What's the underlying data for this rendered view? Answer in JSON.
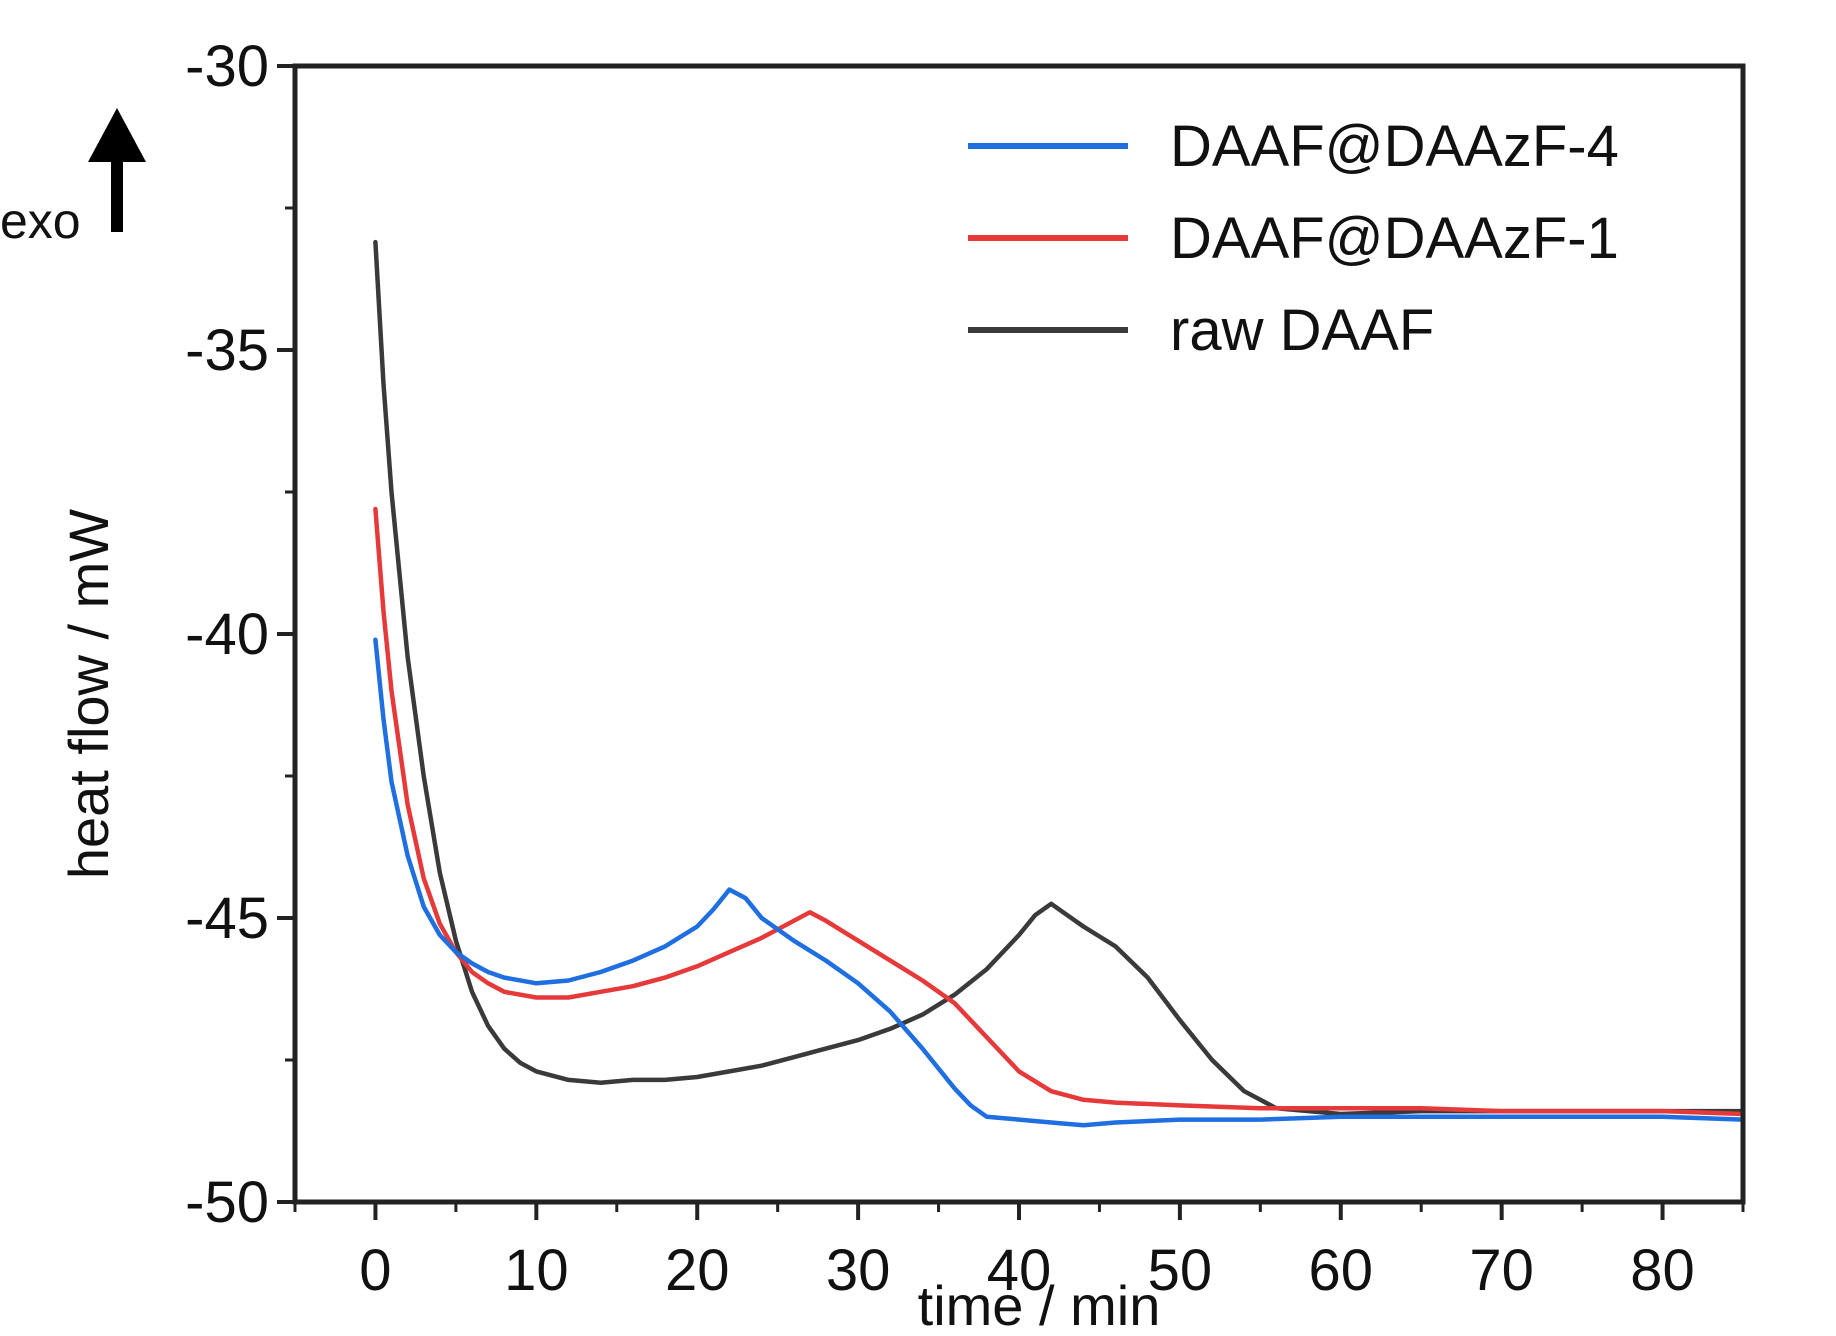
{
  "annotation": {
    "exo_label": "exo"
  },
  "chart_data": {
    "type": "line",
    "xlabel": "time / min",
    "ylabel": "heat flow / mW",
    "xlim": [
      -5,
      85
    ],
    "ylim": [
      -50,
      -30
    ],
    "xticks": [
      0,
      10,
      20,
      30,
      40,
      50,
      60,
      70,
      80
    ],
    "yticks": [
      -30,
      -35,
      -40,
      -45,
      -50
    ],
    "grid": false,
    "legend_position": "top-right",
    "series": [
      {
        "name": "DAAF@DAAzF-4",
        "color": "#1f6fe0",
        "x": [
          0,
          0.5,
          1,
          2,
          3,
          4,
          5,
          6,
          7,
          8,
          10,
          12,
          14,
          16,
          18,
          20,
          21,
          22,
          23,
          24,
          26,
          28,
          30,
          32,
          34,
          36,
          37,
          38,
          40,
          42,
          44,
          46,
          50,
          55,
          60,
          65,
          70,
          75,
          80,
          85
        ],
        "y": [
          -40.1,
          -41.5,
          -42.6,
          -43.9,
          -44.8,
          -45.3,
          -45.6,
          -45.8,
          -45.95,
          -46.05,
          -46.15,
          -46.1,
          -45.95,
          -45.75,
          -45.5,
          -45.15,
          -44.85,
          -44.5,
          -44.65,
          -45.0,
          -45.4,
          -45.75,
          -46.15,
          -46.65,
          -47.3,
          -48.0,
          -48.3,
          -48.5,
          -48.55,
          -48.6,
          -48.65,
          -48.6,
          -48.55,
          -48.55,
          -48.5,
          -48.5,
          -48.5,
          -48.5,
          -48.5,
          -48.55
        ]
      },
      {
        "name": "DAAF@DAAzF-1",
        "color": "#e63a3a",
        "x": [
          0,
          0.5,
          1,
          2,
          3,
          4,
          5,
          6,
          7,
          8,
          10,
          12,
          14,
          16,
          18,
          20,
          22,
          24,
          26,
          27,
          28,
          30,
          32,
          34,
          36,
          38,
          40,
          42,
          44,
          46,
          50,
          55,
          60,
          65,
          70,
          75,
          80,
          85
        ],
        "y": [
          -37.8,
          -39.6,
          -41.0,
          -43.0,
          -44.3,
          -45.1,
          -45.6,
          -45.95,
          -46.15,
          -46.3,
          -46.4,
          -46.4,
          -46.3,
          -46.2,
          -46.05,
          -45.85,
          -45.6,
          -45.35,
          -45.05,
          -44.9,
          -45.05,
          -45.4,
          -45.75,
          -46.1,
          -46.5,
          -47.1,
          -47.7,
          -48.05,
          -48.2,
          -48.25,
          -48.3,
          -48.35,
          -48.35,
          -48.35,
          -48.4,
          -48.4,
          -48.4,
          -48.45
        ]
      },
      {
        "name": "raw DAAF",
        "color": "#3a3a3a",
        "x": [
          0,
          0.5,
          1,
          2,
          3,
          4,
          5,
          6,
          7,
          8,
          9,
          10,
          12,
          14,
          16,
          18,
          20,
          22,
          24,
          26,
          28,
          30,
          32,
          34,
          36,
          38,
          40,
          41,
          42,
          43,
          44,
          46,
          48,
          50,
          52,
          54,
          56,
          60,
          65,
          70,
          75,
          80,
          85
        ],
        "y": [
          -33.1,
          -35.6,
          -37.5,
          -40.4,
          -42.5,
          -44.2,
          -45.4,
          -46.3,
          -46.9,
          -47.3,
          -47.55,
          -47.7,
          -47.85,
          -47.9,
          -47.85,
          -47.85,
          -47.8,
          -47.7,
          -47.6,
          -47.45,
          -47.3,
          -47.15,
          -46.95,
          -46.7,
          -46.35,
          -45.9,
          -45.3,
          -44.95,
          -44.75,
          -44.95,
          -45.15,
          -45.5,
          -46.05,
          -46.8,
          -47.5,
          -48.05,
          -48.35,
          -48.45,
          -48.4,
          -48.4,
          -48.4,
          -48.4,
          -48.4
        ]
      }
    ]
  }
}
